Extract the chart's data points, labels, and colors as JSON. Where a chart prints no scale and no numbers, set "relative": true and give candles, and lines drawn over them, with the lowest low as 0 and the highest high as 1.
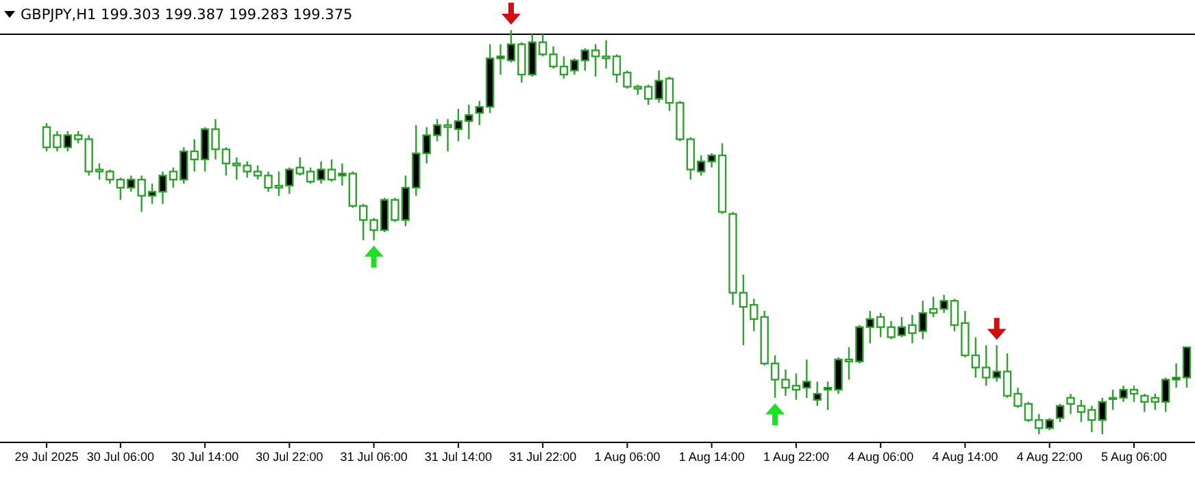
{
  "chart_data": {
    "type": "candlestick",
    "title": "GBPJPY,H1  199.303 199.387 199.283 199.375",
    "relative": true,
    "categories": [
      "29 Jul 2025",
      null,
      null,
      null,
      null,
      null,
      null,
      "30 Jul 06:00",
      null,
      null,
      null,
      null,
      null,
      null,
      null,
      "30 Jul 14:00",
      null,
      null,
      null,
      null,
      null,
      null,
      null,
      "30 Jul 22:00",
      null,
      null,
      null,
      null,
      null,
      null,
      null,
      "31 Jul 06:00",
      null,
      null,
      null,
      null,
      null,
      null,
      null,
      "31 Jul 14:00",
      null,
      null,
      null,
      null,
      null,
      null,
      null,
      "31 Jul 22:00",
      null,
      null,
      null,
      null,
      null,
      null,
      null,
      "1 Aug 06:00",
      null,
      null,
      null,
      null,
      null,
      null,
      null,
      "1 Aug 14:00",
      null,
      null,
      null,
      null,
      null,
      null,
      null,
      "1 Aug 22:00",
      null,
      null,
      null,
      null,
      null,
      null,
      null,
      "4 Aug 06:00",
      null,
      null,
      null,
      null,
      null,
      null,
      null,
      "4 Aug 14:00",
      null,
      null,
      null,
      null,
      null,
      null,
      null,
      "4 Aug 22:00",
      null,
      null,
      null,
      null,
      null,
      null,
      null,
      "5 Aug 06:00",
      null,
      null,
      null,
      null,
      null
    ],
    "series": [
      {
        "color": "#2ea02e",
        "ohlc": [
          [
            0.76,
            0.77,
            0.7,
            0.71
          ],
          [
            0.74,
            0.75,
            0.7,
            0.71
          ],
          [
            0.71,
            0.75,
            0.7,
            0.74
          ],
          [
            0.74,
            0.75,
            0.72,
            0.73
          ],
          [
            0.73,
            0.74,
            0.64,
            0.65
          ],
          [
            0.655,
            0.67,
            0.63,
            0.65
          ],
          [
            0.65,
            0.655,
            0.62,
            0.63
          ],
          [
            0.63,
            0.635,
            0.58,
            0.61
          ],
          [
            0.61,
            0.64,
            0.6,
            0.63
          ],
          [
            0.63,
            0.64,
            0.55,
            0.59
          ],
          [
            0.59,
            0.62,
            0.57,
            0.6
          ],
          [
            0.6,
            0.65,
            0.57,
            0.64
          ],
          [
            0.65,
            0.66,
            0.61,
            0.63
          ],
          [
            0.63,
            0.71,
            0.62,
            0.7
          ],
          [
            0.7,
            0.73,
            0.65,
            0.68
          ],
          [
            0.68,
            0.76,
            0.65,
            0.755
          ],
          [
            0.755,
            0.78,
            0.68,
            0.705
          ],
          [
            0.705,
            0.71,
            0.64,
            0.67
          ],
          [
            0.67,
            0.685,
            0.63,
            0.665
          ],
          [
            0.665,
            0.675,
            0.635,
            0.65
          ],
          [
            0.65,
            0.665,
            0.63,
            0.64
          ],
          [
            0.64,
            0.65,
            0.6,
            0.61
          ],
          [
            0.615,
            0.65,
            0.59,
            0.61
          ],
          [
            0.615,
            0.66,
            0.595,
            0.655
          ],
          [
            0.66,
            0.685,
            0.64,
            0.645
          ],
          [
            0.65,
            0.66,
            0.62,
            0.625
          ],
          [
            0.63,
            0.675,
            0.62,
            0.655
          ],
          [
            0.655,
            0.68,
            0.625,
            0.63
          ],
          [
            0.64,
            0.67,
            0.615,
            0.645
          ],
          [
            0.645,
            0.65,
            0.56,
            0.565
          ],
          [
            0.565,
            0.57,
            0.48,
            0.53
          ],
          [
            0.53,
            0.535,
            0.48,
            0.505
          ],
          [
            0.505,
            0.585,
            0.5,
            0.58
          ],
          [
            0.58,
            0.585,
            0.525,
            0.53
          ],
          [
            0.53,
            0.64,
            0.515,
            0.61
          ],
          [
            0.61,
            0.765,
            0.59,
            0.695
          ],
          [
            0.695,
            0.76,
            0.67,
            0.74
          ],
          [
            0.74,
            0.78,
            0.725,
            0.765
          ],
          [
            0.765,
            0.78,
            0.7,
            0.76
          ],
          [
            0.755,
            0.805,
            0.725,
            0.775
          ],
          [
            0.775,
            0.815,
            0.73,
            0.79
          ],
          [
            0.795,
            0.825,
            0.765,
            0.81
          ],
          [
            0.81,
            0.965,
            0.795,
            0.93
          ],
          [
            0.93,
            0.965,
            0.89,
            0.935
          ],
          [
            0.925,
            1,
            0.92,
            0.965
          ],
          [
            0.965,
            0.97,
            0.87,
            0.89
          ],
          [
            0.89,
            0.99,
            0.885,
            0.97
          ],
          [
            0.97,
            0.99,
            0.935,
            0.94
          ],
          [
            0.94,
            0.96,
            0.905,
            0.91
          ],
          [
            0.91,
            0.935,
            0.88,
            0.89
          ],
          [
            0.9,
            0.93,
            0.89,
            0.925
          ],
          [
            0.925,
            0.955,
            0.9,
            0.95
          ],
          [
            0.95,
            0.965,
            0.885,
            0.935
          ],
          [
            0.935,
            0.975,
            0.905,
            0.93
          ],
          [
            0.935,
            0.94,
            0.87,
            0.89
          ],
          [
            0.895,
            0.9,
            0.855,
            0.86
          ],
          [
            0.86,
            0.865,
            0.84,
            0.855
          ],
          [
            0.86,
            0.865,
            0.815,
            0.83
          ],
          [
            0.83,
            0.9,
            0.82,
            0.875
          ],
          [
            0.88,
            0.885,
            0.8,
            0.82
          ],
          [
            0.82,
            0.825,
            0.725,
            0.73
          ],
          [
            0.73,
            0.735,
            0.63,
            0.655
          ],
          [
            0.65,
            0.69,
            0.64,
            0.675
          ],
          [
            0.675,
            0.695,
            0.66,
            0.69
          ],
          [
            0.69,
            0.72,
            0.545,
            0.55
          ],
          [
            0.545,
            0.55,
            0.32,
            0.35
          ],
          [
            0.35,
            0.395,
            0.22,
            0.315
          ],
          [
            0.32,
            0.335,
            0.255,
            0.285
          ],
          [
            0.29,
            0.305,
            0.17,
            0.175
          ],
          [
            0.175,
            0.195,
            0.09,
            0.135
          ],
          [
            0.135,
            0.16,
            0.095,
            0.115
          ],
          [
            0.12,
            0.15,
            0.085,
            0.11
          ],
          [
            0.115,
            0.185,
            0.09,
            0.13
          ],
          [
            0.085,
            0.13,
            0.07,
            0.1
          ],
          [
            0.11,
            0.13,
            0.06,
            0.115
          ],
          [
            0.11,
            0.19,
            0.1,
            0.185
          ],
          [
            0.185,
            0.215,
            0.135,
            0.18
          ],
          [
            0.18,
            0.27,
            0.175,
            0.265
          ],
          [
            0.265,
            0.305,
            0.225,
            0.285
          ],
          [
            0.29,
            0.3,
            0.24,
            0.265
          ],
          [
            0.265,
            0.28,
            0.235,
            0.24
          ],
          [
            0.245,
            0.29,
            0.24,
            0.265
          ],
          [
            0.27,
            0.295,
            0.225,
            0.25
          ],
          [
            0.255,
            0.33,
            0.235,
            0.3
          ],
          [
            0.31,
            0.34,
            0.29,
            0.3
          ],
          [
            0.31,
            0.345,
            0.3,
            0.33
          ],
          [
            0.33,
            0.335,
            0.255,
            0.27
          ],
          [
            0.275,
            0.305,
            0.19,
            0.195
          ],
          [
            0.195,
            0.24,
            0.14,
            0.165
          ],
          [
            0.165,
            0.22,
            0.12,
            0.14
          ],
          [
            0.14,
            0.22,
            0.13,
            0.155
          ],
          [
            0.155,
            0.2,
            0.09,
            0.095
          ],
          [
            0.1,
            0.115,
            0.065,
            0.07
          ],
          [
            0.075,
            0.08,
            0.03,
            0.035
          ],
          [
            0.035,
            0.05,
            0,
            0.015
          ],
          [
            0.015,
            0.04,
            0.01,
            0.035
          ],
          [
            0.04,
            0.075,
            0.03,
            0.07
          ],
          [
            0.09,
            0.1,
            0.05,
            0.075
          ],
          [
            0.07,
            0.085,
            0.03,
            0.055
          ],
          [
            0.06,
            0.07,
            0.005,
            0.035
          ],
          [
            0.035,
            0.09,
            0,
            0.08
          ],
          [
            0.09,
            0.11,
            0.06,
            0.09
          ],
          [
            0.09,
            0.12,
            0.08,
            0.11
          ],
          [
            0.11,
            0.12,
            0.08,
            0.1
          ],
          [
            0.095,
            0.1,
            0.055,
            0.08
          ],
          [
            0.09,
            0.1,
            0.06,
            0.08
          ],
          [
            0.08,
            0.14,
            0.055,
            0.135
          ],
          [
            0.135,
            0.175,
            0.115,
            0.14
          ],
          [
            0.14,
            0.215,
            0.115,
            0.215
          ]
        ]
      }
    ],
    "ref_lines": [
      {
        "axis": "y",
        "value": 0.99,
        "color": "#000000"
      }
    ]
  }
}
